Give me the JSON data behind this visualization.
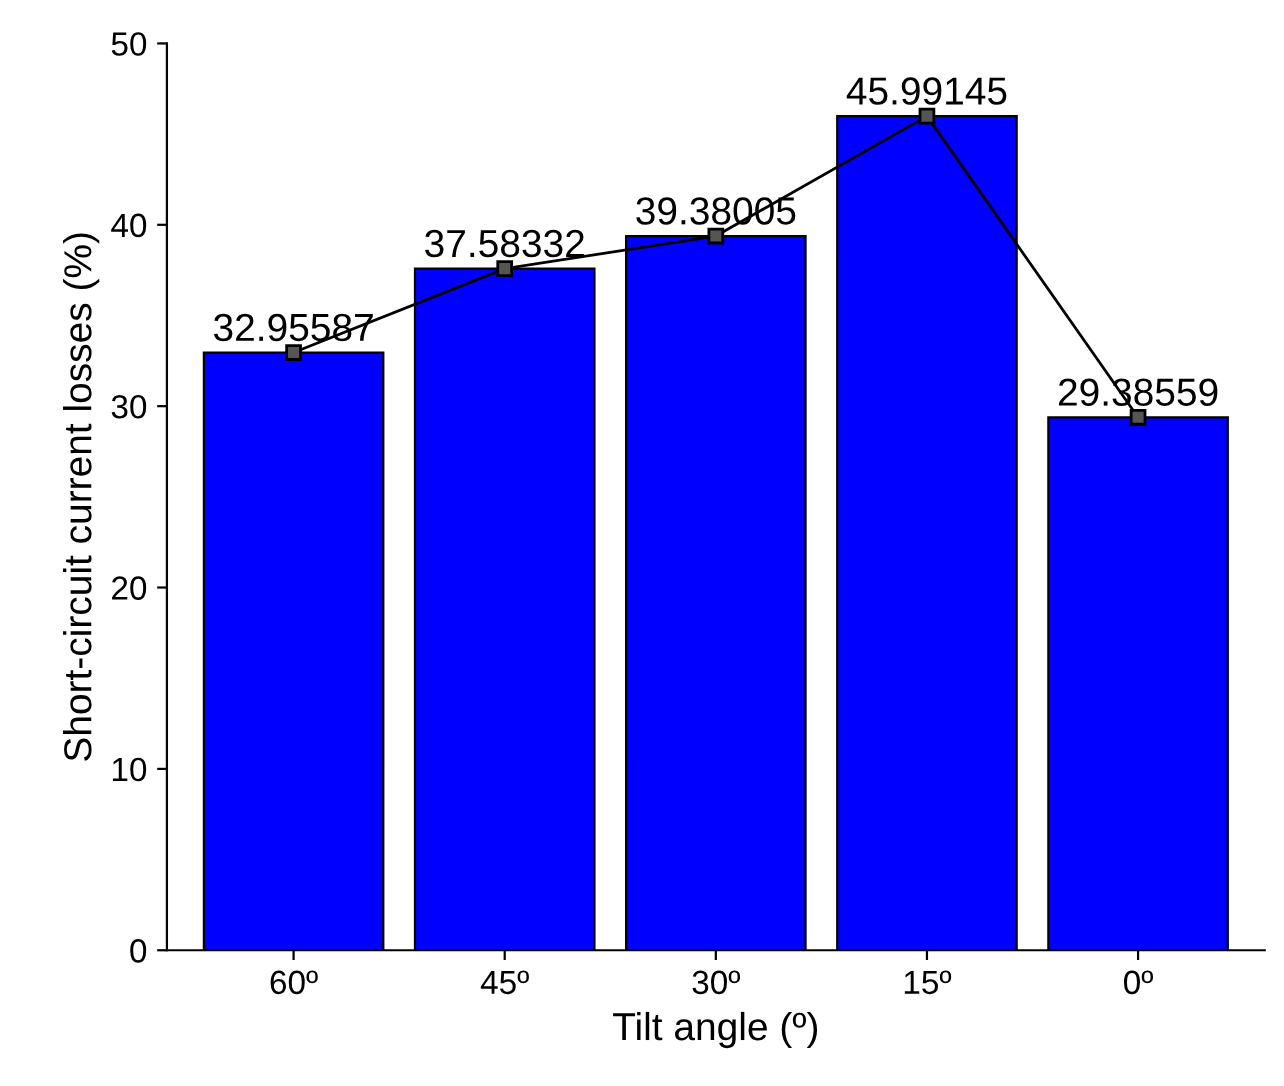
{
  "chart_data": {
    "type": "bar",
    "xlabel": "Tilt angle (º)",
    "ylabel": "Short-circuit current losses (%)",
    "categories": [
      "60º",
      "45º",
      "30º",
      "15º",
      "0º"
    ],
    "series": [
      {
        "type": "bar",
        "color": "#0000ff",
        "values": [
          32.95587,
          37.58332,
          39.38005,
          45.99145,
          29.38559
        ],
        "value_labels": [
          "32.95587",
          "37.58332",
          "39.38005",
          "45.99145",
          "29.38559"
        ]
      },
      {
        "type": "line",
        "color": "#000000",
        "marker": "square",
        "values": [
          32.95587,
          37.58332,
          39.38005,
          45.99145,
          29.38559
        ]
      }
    ],
    "ylim": [
      0,
      50
    ],
    "yticks": [
      0,
      10,
      20,
      30,
      40,
      50
    ],
    "grid": false,
    "legend": false
  }
}
